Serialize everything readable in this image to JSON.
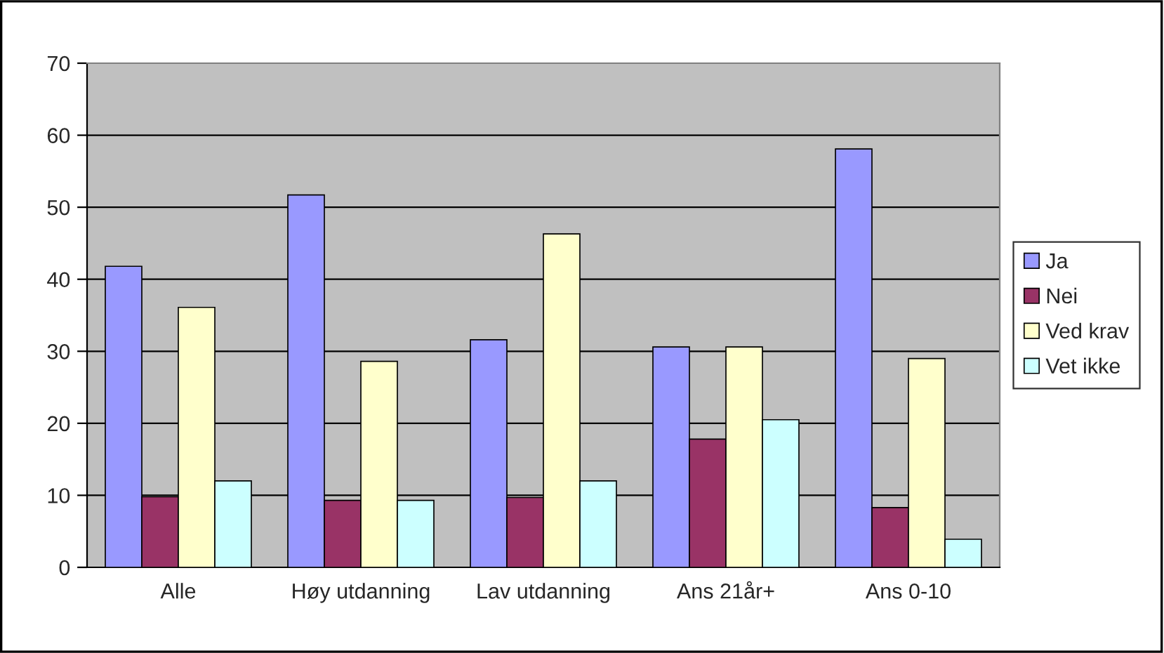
{
  "chart_data": {
    "type": "bar",
    "categories": [
      "Alle",
      "Høy utdanning",
      "Lav utdanning",
      "Ans 21år+",
      "Ans 0-10"
    ],
    "series": [
      {
        "name": "Ja",
        "color": "#9999ff",
        "values": [
          41.8,
          51.7,
          31.6,
          30.6,
          58.1
        ]
      },
      {
        "name": "Nei",
        "color": "#993366",
        "values": [
          9.8,
          9.3,
          9.7,
          17.8,
          8.3
        ]
      },
      {
        "name": "Ved krav",
        "color": "#ffffcc",
        "values": [
          36.1,
          28.6,
          46.3,
          30.6,
          29.0
        ]
      },
      {
        "name": "Vet ikke",
        "color": "#ccffff",
        "values": [
          12.0,
          9.3,
          12.0,
          20.5,
          3.9
        ]
      }
    ],
    "ylim": [
      0,
      70
    ],
    "yticks": [
      0,
      10,
      20,
      30,
      40,
      50,
      60,
      70
    ],
    "grid": "y",
    "legend": "right"
  }
}
